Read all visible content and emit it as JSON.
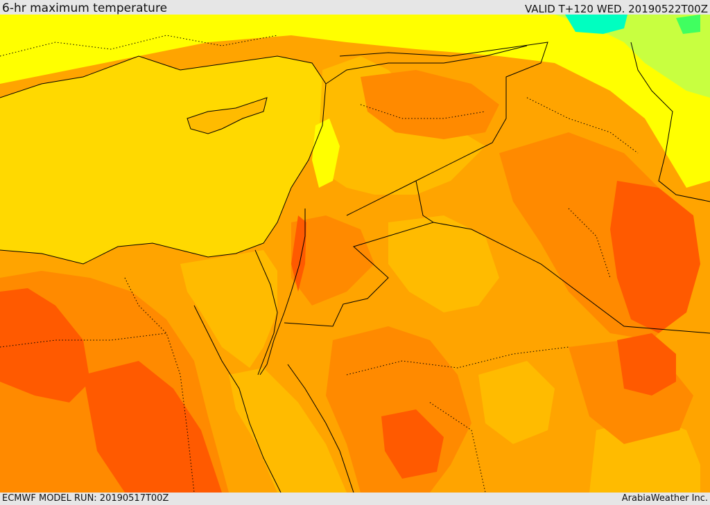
{
  "header": {
    "title": "6-hr maximum temperature",
    "valid": "VALID T+120 WED. 20190522T00Z"
  },
  "footer": {
    "model_run": "ECMWF MODEL RUN: 20190517T00Z",
    "credit": "ArabiaWeather Inc."
  },
  "map": {
    "colors": {
      "sea": "#ffd900",
      "cool_yellow": "#ffff00",
      "light_green": "#c8ff40",
      "green": "#40ff60",
      "cyan": "#00ffc0",
      "light_orange": "#ffbb00",
      "orange": "#ffa400",
      "dark_orange": "#ff8a00",
      "red_orange": "#ff5a00",
      "border_line": "#000000"
    }
  }
}
